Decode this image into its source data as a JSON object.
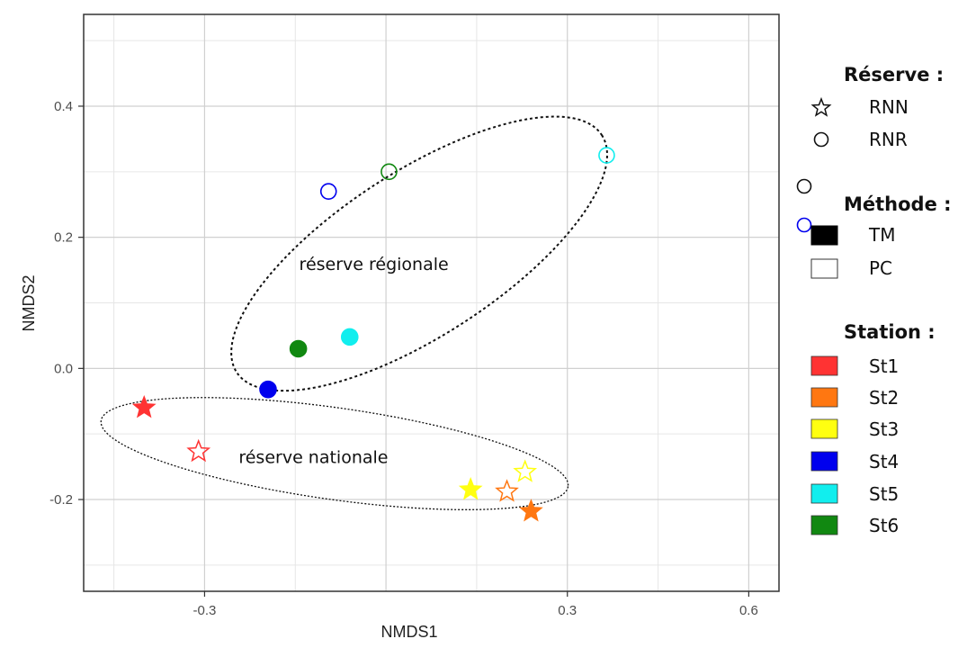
{
  "chart_data": {
    "type": "scatter",
    "xlabel": "NMDS1",
    "ylabel": "NMDS2",
    "xlim": [
      -0.5,
      0.65
    ],
    "ylim": [
      -0.34,
      0.54
    ],
    "x_ticks": [
      -0.3,
      0.3,
      0.6
    ],
    "x_tick_labels": [
      "-0.3",
      "0.3",
      "0.6"
    ],
    "y_ticks": [
      0.4,
      0.2,
      0.0,
      -0.2
    ],
    "y_tick_labels": [
      "0.4",
      "0.2",
      "0.0",
      "-0.2"
    ],
    "grid": true,
    "annotations": [
      {
        "text": "réserve régionale",
        "x": -0.02,
        "y": 0.16
      },
      {
        "text": "réserve nationale",
        "x": -0.12,
        "y": -0.135
      }
    ],
    "ellipses": [
      {
        "group": "RNR",
        "cx": 0.055,
        "cy": 0.175,
        "rx": 0.36,
        "ry": 0.125,
        "angle_deg": 33,
        "dash": "coarse"
      },
      {
        "group": "RNN",
        "cx": -0.085,
        "cy": -0.13,
        "rx": 0.39,
        "ry": 0.07,
        "angle_deg": -8,
        "dash": "fine"
      }
    ],
    "colors": {
      "St1": "#ff3333",
      "St2": "#ff7711",
      "St3": "#ffff11",
      "St4": "#0000ee",
      "St5": "#11eeee",
      "St6": "#118811"
    },
    "points": [
      {
        "x": -0.4,
        "y": -0.06,
        "reserve": "RNN",
        "methode": "TM",
        "station": "St1"
      },
      {
        "x": -0.31,
        "y": -0.127,
        "reserve": "RNN",
        "methode": "PC",
        "station": "St1"
      },
      {
        "x": 0.24,
        "y": -0.218,
        "reserve": "RNN",
        "methode": "TM",
        "station": "St2"
      },
      {
        "x": 0.2,
        "y": -0.188,
        "reserve": "RNN",
        "methode": "PC",
        "station": "St2"
      },
      {
        "x": 0.14,
        "y": -0.185,
        "reserve": "RNN",
        "methode": "TM",
        "station": "St3"
      },
      {
        "x": 0.23,
        "y": -0.158,
        "reserve": "RNN",
        "methode": "PC",
        "station": "St3"
      },
      {
        "x": -0.195,
        "y": -0.032,
        "reserve": "RNR",
        "methode": "TM",
        "station": "St4"
      },
      {
        "x": -0.095,
        "y": 0.27,
        "reserve": "RNR",
        "methode": "PC",
        "station": "St4"
      },
      {
        "x": -0.06,
        "y": 0.048,
        "reserve": "RNR",
        "methode": "TM",
        "station": "St5"
      },
      {
        "x": 0.365,
        "y": 0.325,
        "reserve": "RNR",
        "methode": "PC",
        "station": "St5"
      },
      {
        "x": -0.145,
        "y": 0.03,
        "reserve": "RNR",
        "methode": "TM",
        "station": "St6"
      },
      {
        "x": 0.005,
        "y": 0.3,
        "reserve": "RNR",
        "methode": "PC",
        "station": "St6"
      }
    ]
  },
  "legend": {
    "reserve": {
      "title": "Réserve :",
      "items": [
        {
          "label": "RNN",
          "icon": "star-outline-icon"
        },
        {
          "label": "RNR",
          "icon": "circle-outline-icon"
        }
      ]
    },
    "methode": {
      "title": "Méthode :",
      "items": [
        {
          "label": "TM",
          "fill": "#000000"
        },
        {
          "label": "PC",
          "fill": "#ffffff"
        }
      ]
    },
    "station": {
      "title": "Station :",
      "items": [
        {
          "label": "St1",
          "color": "#ff3333"
        },
        {
          "label": "St2",
          "color": "#ff7711"
        },
        {
          "label": "St3",
          "color": "#ffff11"
        },
        {
          "label": "St4",
          "color": "#0000ee"
        },
        {
          "label": "St5",
          "color": "#11eeee"
        },
        {
          "label": "St6",
          "color": "#118811"
        }
      ]
    }
  }
}
